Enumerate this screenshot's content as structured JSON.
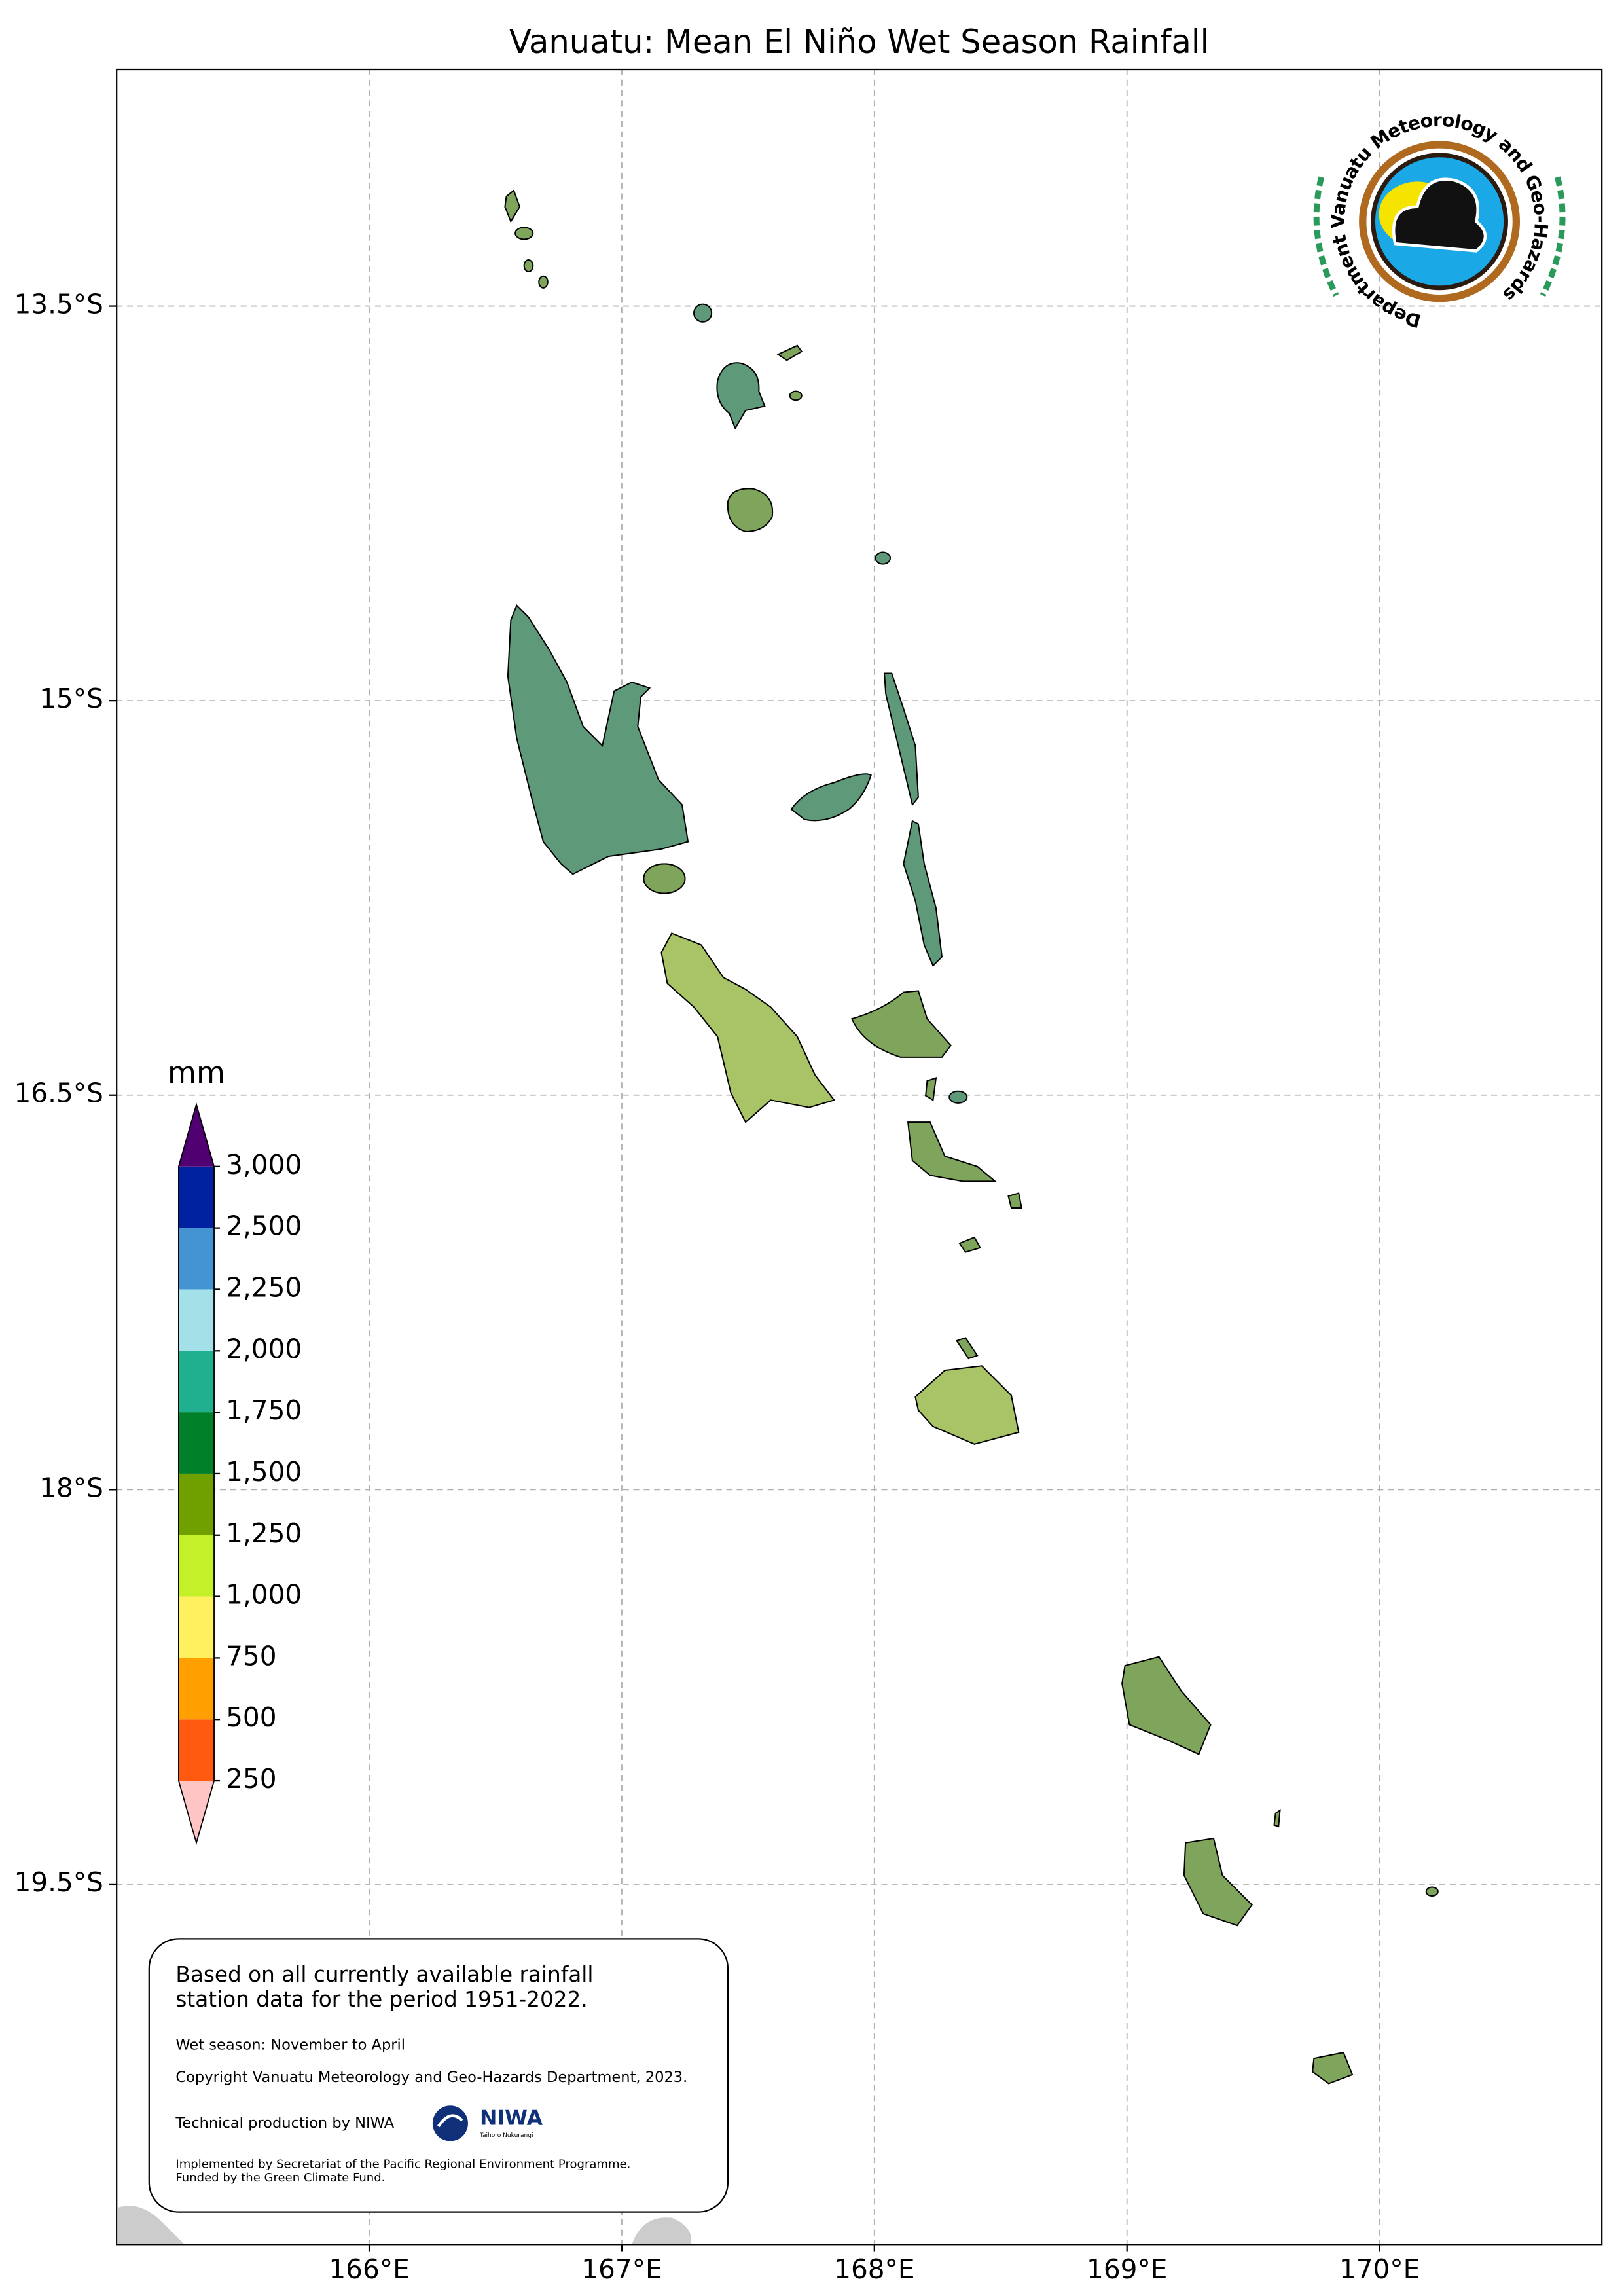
{
  "title": "Vanuatu: Mean El Niño Wet Season Rainfall",
  "map": {
    "xlim": [
      165,
      170.88
    ],
    "ylim": [
      -20.87,
      -12.6
    ],
    "xticks": [
      {
        "value": 166,
        "label": "166°E"
      },
      {
        "value": 167,
        "label": "167°E"
      },
      {
        "value": 168,
        "label": "168°E"
      },
      {
        "value": 169,
        "label": "169°E"
      },
      {
        "value": 170,
        "label": "170°E"
      }
    ],
    "yticks": [
      {
        "value": -13.5,
        "label": "13.5°S"
      },
      {
        "value": -15,
        "label": "15°S"
      },
      {
        "value": -16.5,
        "label": "16.5°S"
      },
      {
        "value": -18,
        "label": "18°S"
      },
      {
        "value": -19.5,
        "label": "19.5°S"
      }
    ],
    "grid": true
  },
  "colorbar": {
    "unit": "mm",
    "levels": [
      250,
      500,
      750,
      {
        "value": 1000,
        "label": "1,000"
      },
      {
        "value": 1250,
        "label": "1,250"
      },
      {
        "value": 1500,
        "label": "1,500"
      },
      {
        "value": 1750,
        "label": "1,750"
      },
      {
        "value": 2000,
        "label": "2,000"
      },
      {
        "value": 2250,
        "label": "2,250"
      },
      {
        "value": 2500,
        "label": "2,500"
      },
      {
        "value": 3000,
        "label": "3,000"
      }
    ],
    "colors": [
      "#ffc4c4",
      "#ff5a10",
      "#ffa000",
      "#fff060",
      "#c4f028",
      "#70a000",
      "#008028",
      "#20b090",
      "#a4e0e8",
      "#4494d4",
      "#0022a0",
      "#500070"
    ]
  },
  "textbox": {
    "lines": [
      "Based on all currently available rainfall",
      "station data for the period 1951-2022.",
      "Wet season: November to April",
      "Copyright Vanuatu Meteorology and Geo-Hazards Department, 2023.",
      "Technical production by NIWA",
      "Implemented by Secretariat of the Pacific Regional Environment Programme.",
      "Funded by the Green Climate Fund."
    ]
  },
  "logos": {
    "vmgd": "Department Vanuatu Meteorology and Geo-Hazards",
    "niwa": "NIWA",
    "niwa_sub": "Taihoro Nukurangi"
  }
}
